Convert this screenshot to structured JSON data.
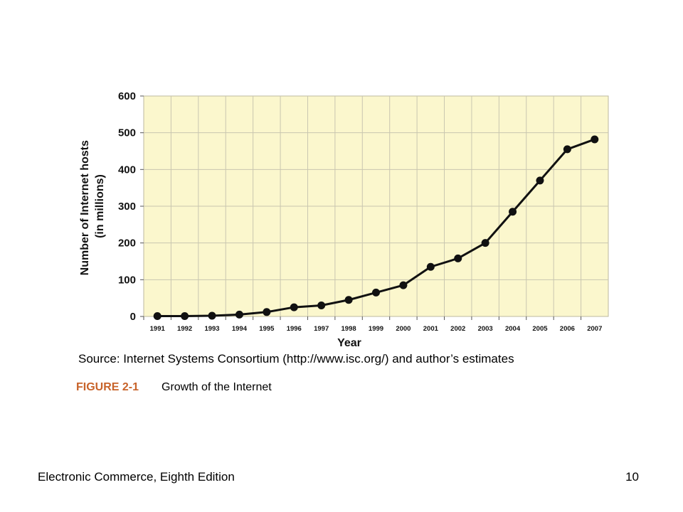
{
  "chart_data": {
    "type": "line",
    "xlabel": "Year",
    "ylabel_line1": "Number of Internet hosts",
    "ylabel_line2": "(in millions)",
    "ylim": [
      0,
      600
    ],
    "yticks": [
      0,
      100,
      200,
      300,
      400,
      500,
      600
    ],
    "grid": true,
    "x": [
      "1991",
      "1992",
      "1993",
      "1994",
      "1995",
      "1996",
      "1997",
      "1998",
      "1999",
      "2000",
      "2001",
      "2002",
      "2003",
      "2004",
      "2005",
      "2006",
      "2007"
    ],
    "series": [
      {
        "values": [
          1,
          1,
          2,
          5,
          12,
          25,
          30,
          45,
          65,
          85,
          135,
          158,
          200,
          285,
          370,
          455,
          482
        ]
      }
    ],
    "colors": {
      "plot_background": "#fbf7cd",
      "line": "#111111",
      "grid": "#c9c6b0"
    }
  },
  "source_text": "Source: Internet Systems Consortium (http://www.isc.org/) and author’s estimates",
  "figure": {
    "number": "FIGURE 2-1",
    "title": "Growth of the Internet",
    "number_color": "#c8632a"
  },
  "footer": {
    "left": "Electronic Commerce, Eighth Edition",
    "right": "10"
  }
}
